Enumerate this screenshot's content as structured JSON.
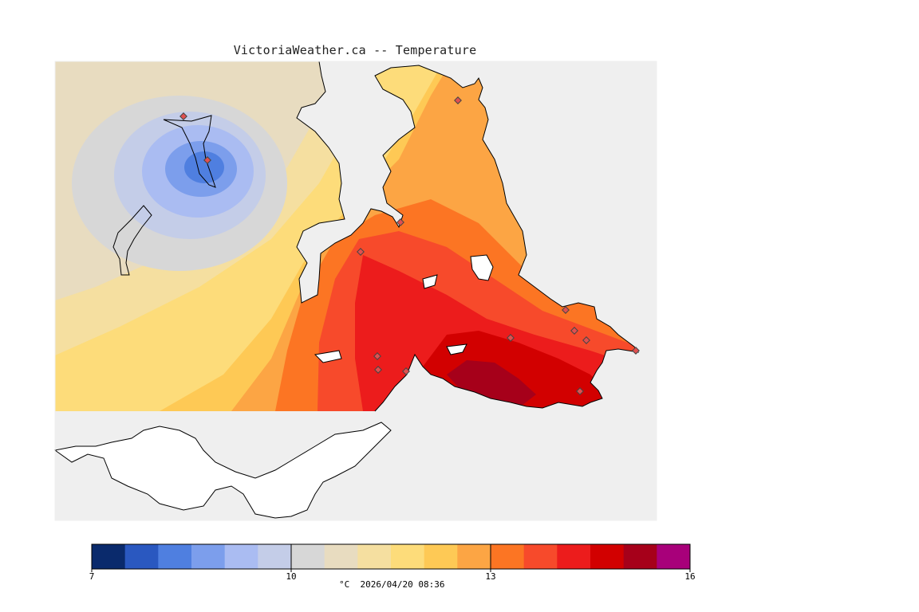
{
  "header": {
    "title": "VictoriaWeather.ca -- Temperature"
  },
  "map": {
    "land_outside_color": "#efefef",
    "water_color": "#ffffff",
    "coastline_color": "#000000",
    "station_marker_color": "#d03030"
  },
  "legend": {
    "bins": [
      {
        "color": "#0a2a6c"
      },
      {
        "color": "#2a58c0"
      },
      {
        "color": "#4f7fe0"
      },
      {
        "color": "#7c9eec"
      },
      {
        "color": "#aabcf2"
      },
      {
        "color": "#c4cde8"
      },
      {
        "color": "#d7d7d7"
      },
      {
        "color": "#e8dcc0"
      },
      {
        "color": "#f5dfa0"
      },
      {
        "color": "#fddc7a"
      },
      {
        "color": "#fec955"
      },
      {
        "color": "#fca544"
      },
      {
        "color": "#fc7523"
      },
      {
        "color": "#f74a2b"
      },
      {
        "color": "#ec1c1c"
      },
      {
        "color": "#d20000"
      },
      {
        "color": "#a6001a"
      },
      {
        "color": "#a8007a"
      }
    ],
    "ticks": [
      {
        "label": "7",
        "value": 7
      },
      {
        "label": "10",
        "value": 10
      },
      {
        "label": "13",
        "value": 13
      },
      {
        "label": "16",
        "value": 16
      }
    ],
    "min": 7,
    "max": 16,
    "unit": "°C",
    "timestamp": "2026/04/20 08:36"
  }
}
